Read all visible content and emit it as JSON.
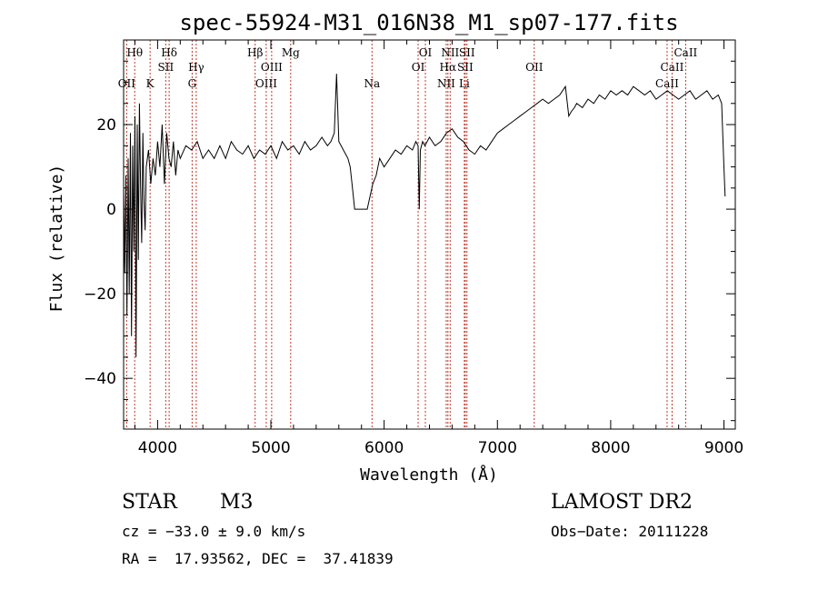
{
  "chart_data": {
    "type": "line",
    "title": "spec-55924-M31_016N38_M1_sp07-177.fits",
    "xlabel": "Wavelength (Å)",
    "ylabel": "Flux (relative)",
    "xlim": [
      3700,
      9100
    ],
    "ylim": [
      -52,
      40
    ],
    "x_ticks": [
      4000,
      5000,
      6000,
      7000,
      8000,
      9000
    ],
    "y_ticks": [
      -40,
      -20,
      0,
      20
    ],
    "grid": false,
    "series": [
      {
        "color": "#000000",
        "x": [
          3700,
          3710,
          3720,
          3730,
          3740,
          3750,
          3760,
          3770,
          3780,
          3790,
          3800,
          3810,
          3820,
          3830,
          3840,
          3850,
          3860,
          3870,
          3880,
          3890,
          3900,
          3920,
          3940,
          3960,
          3980,
          4000,
          4020,
          4040,
          4060,
          4080,
          4100,
          4120,
          4140,
          4160,
          4180,
          4200,
          4250,
          4300,
          4350,
          4400,
          4450,
          4500,
          4550,
          4600,
          4650,
          4700,
          4750,
          4800,
          4850,
          4900,
          4950,
          5000,
          5050,
          5100,
          5150,
          5200,
          5250,
          5300,
          5350,
          5400,
          5450,
          5500,
          5530,
          5560,
          5580,
          5600,
          5620,
          5640,
          5660,
          5680,
          5700,
          5720,
          5740,
          5760,
          5780,
          5800,
          5850,
          5900,
          5930,
          5960,
          6000,
          6050,
          6100,
          6150,
          6200,
          6250,
          6280,
          6300,
          6310,
          6320,
          6340,
          6360,
          6400,
          6450,
          6500,
          6550,
          6600,
          6650,
          6700,
          6750,
          6800,
          6850,
          6900,
          6950,
          7000,
          7050,
          7100,
          7150,
          7200,
          7250,
          7300,
          7350,
          7400,
          7450,
          7500,
          7550,
          7600,
          7630,
          7650,
          7680,
          7700,
          7750,
          7800,
          7850,
          7900,
          7950,
          8000,
          8050,
          8100,
          8150,
          8200,
          8250,
          8300,
          8350,
          8400,
          8450,
          8500,
          8550,
          8600,
          8650,
          8700,
          8750,
          8800,
          8850,
          8900,
          8950,
          8980,
          9000,
          9010
        ],
        "y": [
          5,
          -15,
          8,
          -25,
          12,
          -20,
          18,
          -30,
          15,
          -10,
          22,
          -35,
          20,
          -12,
          25,
          5,
          -8,
          18,
          2,
          -5,
          10,
          14,
          6,
          12,
          8,
          16,
          10,
          20,
          6,
          18,
          12,
          10,
          16,
          8,
          14,
          12,
          15,
          14,
          16,
          12,
          14,
          12,
          15,
          12,
          16,
          14,
          13,
          15,
          12,
          14,
          13,
          15,
          12,
          16,
          14,
          15,
          13,
          16,
          14,
          15,
          17,
          15,
          16,
          18,
          32,
          16,
          15,
          14,
          13,
          12,
          10,
          5,
          0,
          0,
          0,
          0,
          0,
          6,
          8,
          12,
          10,
          12,
          14,
          13,
          15,
          14,
          16,
          15,
          0,
          14,
          16,
          15,
          17,
          15,
          16,
          18,
          19,
          17,
          16,
          14,
          13,
          15,
          14,
          16,
          18,
          19,
          20,
          21,
          22,
          23,
          24,
          25,
          26,
          25,
          26,
          27,
          29,
          22,
          23,
          24,
          25,
          24,
          26,
          25,
          27,
          26,
          28,
          27,
          28,
          27,
          29,
          28,
          27,
          28,
          26,
          27,
          28,
          27,
          26,
          27,
          28,
          26,
          27,
          28,
          26,
          27,
          25,
          10,
          3
        ]
      }
    ],
    "annotations": [
      {
        "label": "Hθ",
        "x": 3798,
        "row": 1
      },
      {
        "label": "OII",
        "x": 3727,
        "row": 3
      },
      {
        "label": "K",
        "x": 3934,
        "row": 3
      },
      {
        "label": "Hδ",
        "x": 4102,
        "row": 1
      },
      {
        "label": "SII",
        "x": 4072,
        "row": 2
      },
      {
        "label": "Hγ",
        "x": 4341,
        "row": 2
      },
      {
        "label": "G",
        "x": 4305,
        "row": 3
      },
      {
        "label": "Hβ",
        "x": 4861,
        "row": 1
      },
      {
        "label": "OIII",
        "x": 5007,
        "row": 2
      },
      {
        "label": "OIII",
        "x": 4959,
        "row": 3
      },
      {
        "label": "Mg",
        "x": 5175,
        "row": 1
      },
      {
        "label": "Na",
        "x": 5893,
        "row": 3
      },
      {
        "label": "OI",
        "x": 6364,
        "row": 1
      },
      {
        "label": "OI",
        "x": 6300,
        "row": 2
      },
      {
        "label": "NII",
        "x": 6583,
        "row": 1
      },
      {
        "label": "Hα",
        "x": 6563,
        "row": 2
      },
      {
        "label": "NII",
        "x": 6548,
        "row": 3
      },
      {
        "label": "SII",
        "x": 6731,
        "row": 1
      },
      {
        "label": "SII",
        "x": 6716,
        "row": 2
      },
      {
        "label": "Li",
        "x": 6708,
        "row": 3
      },
      {
        "label": "OII",
        "x": 7325,
        "row": 2
      },
      {
        "label": "CaII",
        "x": 8662,
        "row": 1
      },
      {
        "label": "CaII",
        "x": 8542,
        "row": 2
      },
      {
        "label": "CaII",
        "x": 8498,
        "row": 3
      }
    ],
    "line_markers": [
      3727,
      3798,
      3934,
      4072,
      4102,
      4305,
      4341,
      4861,
      4959,
      5007,
      5175,
      5893,
      6300,
      6364,
      6548,
      6563,
      6583,
      6708,
      6716,
      6731,
      7325,
      8498,
      8542,
      8662
    ],
    "marker_color": "#c0392b"
  },
  "info": {
    "object_class": "STAR",
    "subclass": "M3",
    "survey": "LAMOST DR2",
    "cz": "cz = −33.0 ± 9.0 km/s",
    "obs_date": "Obs−Date: 20111228",
    "coords": "RA =  17.93562, DEC =  37.41839"
  }
}
